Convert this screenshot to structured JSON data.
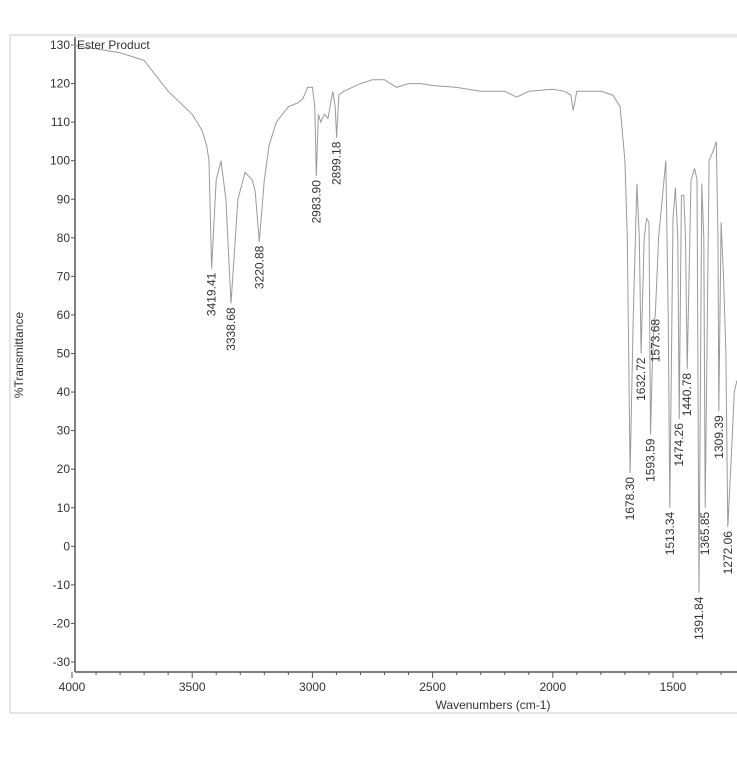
{
  "chart_data": {
    "type": "line",
    "title": "Ester Product",
    "xlabel": "Wavenumbers (cm-1)",
    "ylabel": "%Transmittance",
    "xlim": [
      4000,
      1234
    ],
    "ylim": [
      -30,
      130
    ],
    "x_ticks": [
      4000,
      3500,
      3000,
      2500,
      2000,
      1500
    ],
    "y_ticks": [
      130,
      120,
      110,
      100,
      90,
      80,
      70,
      60,
      50,
      40,
      30,
      20,
      10,
      0,
      -10,
      -20,
      -30
    ],
    "grid": false,
    "series": [
      {
        "name": "Ester Product",
        "color": "#9a9a9a",
        "x": [
          4000,
          3900,
          3800,
          3700,
          3600,
          3500,
          3460,
          3440,
          3430,
          3419.41,
          3400,
          3380,
          3360,
          3338.68,
          3310,
          3280,
          3250,
          3238,
          3220.88,
          3200,
          3180,
          3150,
          3100,
          3060,
          3040,
          3020,
          3000,
          2990,
          2983.9,
          2975,
          2965,
          2950,
          2935,
          2915,
          2905,
          2899.18,
          2890,
          2870,
          2800,
          2750,
          2700,
          2650,
          2600,
          2550,
          2500,
          2400,
          2300,
          2200,
          2150,
          2100,
          2000,
          1950,
          1925,
          1915,
          1900,
          1800,
          1750,
          1720,
          1700,
          1690,
          1678.3,
          1665,
          1650,
          1640,
          1632.72,
          1620,
          1610,
          1600,
          1593.59,
          1585,
          1578,
          1573.68,
          1560,
          1545,
          1530,
          1520,
          1513.34,
          1500,
          1490,
          1480,
          1474.26,
          1465,
          1455,
          1448,
          1440.78,
          1425,
          1410,
          1400,
          1391.84,
          1380,
          1372,
          1365.85,
          1350,
          1330,
          1320,
          1313,
          1309.39,
          1300,
          1290,
          1280,
          1272.06,
          1260,
          1245,
          1234
        ],
        "y": [
          130,
          129,
          128,
          126,
          118,
          112,
          108,
          104,
          100,
          72,
          95,
          100,
          90,
          63,
          90,
          97,
          95,
          92,
          79,
          95,
          104,
          110,
          114,
          115,
          116,
          119,
          119,
          114,
          96,
          112,
          110,
          112,
          111,
          118,
          114,
          106,
          117,
          118,
          120,
          121,
          121,
          119,
          120,
          120,
          119.5,
          119,
          118,
          118,
          116.5,
          118,
          118.5,
          118,
          117,
          113,
          118,
          118,
          117,
          114,
          100,
          80,
          19,
          60,
          94,
          80,
          50,
          80,
          85,
          84,
          29,
          50,
          58,
          60,
          80,
          90,
          100,
          60,
          10,
          85,
          93,
          80,
          33,
          91,
          91,
          80,
          46,
          95,
          98,
          95,
          -12,
          94,
          80,
          10,
          100,
          103,
          105,
          80,
          35,
          84,
          70,
          50,
          5,
          20,
          40,
          43
        ]
      }
    ],
    "peak_labels": [
      {
        "x": 3419.41,
        "y": 72,
        "label": "3419.41"
      },
      {
        "x": 3338.68,
        "y": 63,
        "label": "3338.68"
      },
      {
        "x": 3220.88,
        "y": 79,
        "label": "3220.88"
      },
      {
        "x": 2983.9,
        "y": 96,
        "label": "2983.90"
      },
      {
        "x": 2899.18,
        "y": 106,
        "label": "2899.18"
      },
      {
        "x": 1678.3,
        "y": 19,
        "label": "1678.30"
      },
      {
        "x": 1632.72,
        "y": 50,
        "label": "1632.72"
      },
      {
        "x": 1593.59,
        "y": 29,
        "label": "1593.59"
      },
      {
        "x": 1573.68,
        "y": 60,
        "label": "1573.68"
      },
      {
        "x": 1513.34,
        "y": 10,
        "label": "1513.34"
      },
      {
        "x": 1474.26,
        "y": 33,
        "label": "1474.26"
      },
      {
        "x": 1440.78,
        "y": 46,
        "label": "1440.78"
      },
      {
        "x": 1391.84,
        "y": -12,
        "label": "1391.84"
      },
      {
        "x": 1365.85,
        "y": 10,
        "label": "1365.85"
      },
      {
        "x": 1309.39,
        "y": 35,
        "label": "1309.39"
      },
      {
        "x": 1272.06,
        "y": 5,
        "label": "1272.06"
      }
    ]
  }
}
